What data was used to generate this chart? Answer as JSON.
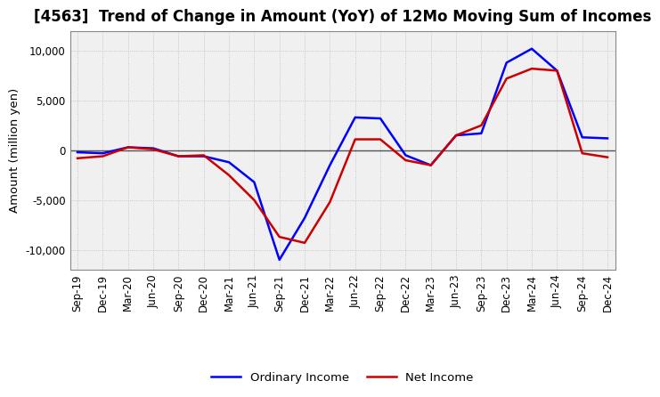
{
  "title": "[4563]  Trend of Change in Amount (YoY) of 12Mo Moving Sum of Incomes",
  "ylabel": "Amount (million yen)",
  "background_color": "#ffffff",
  "plot_background": "#f0f0f0",
  "grid_color": "#bbbbbb",
  "x_labels": [
    "Sep-19",
    "Dec-19",
    "Mar-20",
    "Jun-20",
    "Sep-20",
    "Dec-20",
    "Mar-21",
    "Jun-21",
    "Sep-21",
    "Dec-21",
    "Mar-22",
    "Jun-22",
    "Sep-22",
    "Dec-22",
    "Mar-23",
    "Jun-23",
    "Sep-23",
    "Dec-23",
    "Mar-24",
    "Jun-24",
    "Sep-24",
    "Dec-24"
  ],
  "ordinary_income": [
    -200,
    -300,
    300,
    200,
    -600,
    -600,
    -1200,
    -3200,
    -11000,
    -6800,
    -1500,
    3300,
    3200,
    -500,
    -1500,
    1500,
    1700,
    8800,
    10200,
    8000,
    1300,
    1200
  ],
  "net_income": [
    -800,
    -600,
    300,
    100,
    -600,
    -500,
    -2500,
    -5000,
    -8700,
    -9300,
    -5200,
    1100,
    1100,
    -1000,
    -1500,
    1500,
    2500,
    7200,
    8200,
    8000,
    -300,
    -700
  ],
  "ordinary_color": "#0000ff",
  "net_color": "#cc0000",
  "ylim": [
    -12000,
    12000
  ],
  "yticks": [
    -10000,
    -5000,
    0,
    5000,
    10000
  ],
  "line_width": 1.8,
  "legend_ordinary": "Ordinary Income",
  "legend_net": "Net Income",
  "title_fontsize": 12,
  "axis_fontsize": 9.5,
  "tick_fontsize": 8.5
}
